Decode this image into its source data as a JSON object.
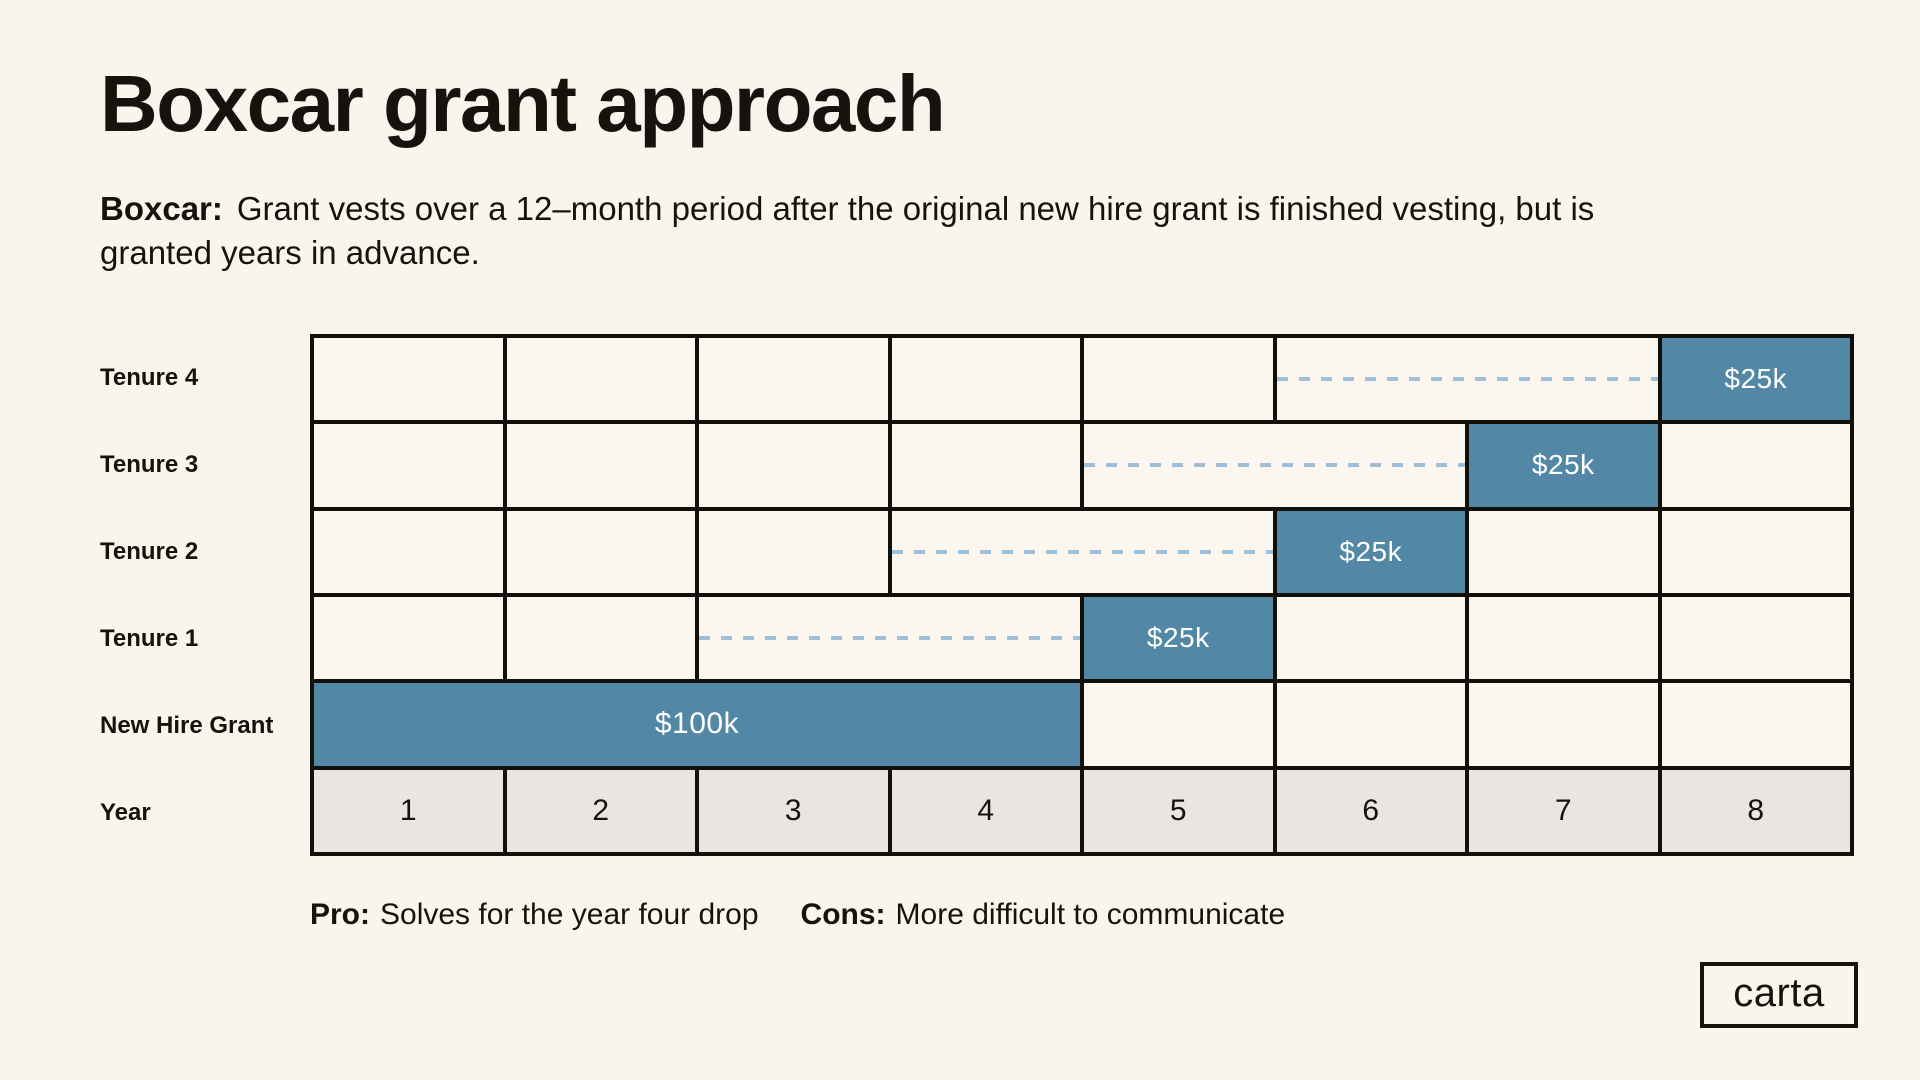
{
  "title": "Boxcar grant approach",
  "subtitle": {
    "lead": "Boxcar:",
    "text": "Grant vests over a 12–month period after the original new hire grant is finished vesting, but is granted years in advance."
  },
  "footnote": {
    "pro_label": "Pro:",
    "pro_text": "Solves for the year four drop",
    "cons_label": "Cons:",
    "cons_text": "More difficult to communicate"
  },
  "logo_text": "carta",
  "colors": {
    "background": "#faf5ec",
    "grant_bar_blue": "#5287a6",
    "dashed_connector_blue": "#9fbfd8",
    "year_row_gray": "#e9e5e0",
    "ink_black": "#16130e"
  },
  "chart": {
    "row_labels": [
      "Tenure 4",
      "Tenure 3",
      "Tenure 2",
      "Tenure 1",
      "New Hire Grant",
      "Year"
    ],
    "rows": [
      {
        "label": "Tenure 4",
        "cells": [
          {
            "t": "empty"
          },
          {
            "t": "empty"
          },
          {
            "t": "empty"
          },
          {
            "t": "empty"
          },
          {
            "t": "empty"
          },
          {
            "t": "dashed",
            "span": 2
          },
          {
            "t": "grant",
            "text": "$25k"
          }
        ]
      },
      {
        "label": "Tenure 3",
        "cells": [
          {
            "t": "empty"
          },
          {
            "t": "empty"
          },
          {
            "t": "empty"
          },
          {
            "t": "empty"
          },
          {
            "t": "dashed",
            "span": 2
          },
          {
            "t": "grant",
            "text": "$25k"
          },
          {
            "t": "empty"
          }
        ]
      },
      {
        "label": "Tenure 2",
        "cells": [
          {
            "t": "empty"
          },
          {
            "t": "empty"
          },
          {
            "t": "empty"
          },
          {
            "t": "dashed",
            "span": 2
          },
          {
            "t": "grant",
            "text": "$25k"
          },
          {
            "t": "empty"
          },
          {
            "t": "empty"
          }
        ]
      },
      {
        "label": "Tenure 1",
        "cells": [
          {
            "t": "empty"
          },
          {
            "t": "empty"
          },
          {
            "t": "dashed",
            "span": 2
          },
          {
            "t": "grant",
            "text": "$25k"
          },
          {
            "t": "empty"
          },
          {
            "t": "empty"
          },
          {
            "t": "empty"
          }
        ]
      },
      {
        "label": "New Hire Grant",
        "cells": [
          {
            "t": "grant",
            "span": 4,
            "text": "$100k",
            "wide": true
          },
          {
            "t": "empty"
          },
          {
            "t": "empty"
          },
          {
            "t": "empty"
          },
          {
            "t": "empty"
          }
        ]
      },
      {
        "label": "Year",
        "cells": [
          {
            "t": "year",
            "text": "1"
          },
          {
            "t": "year",
            "text": "2"
          },
          {
            "t": "year",
            "text": "3"
          },
          {
            "t": "year",
            "text": "4"
          },
          {
            "t": "year",
            "text": "5"
          },
          {
            "t": "year",
            "text": "6"
          },
          {
            "t": "year",
            "text": "7"
          },
          {
            "t": "year",
            "text": "8"
          }
        ]
      }
    ]
  },
  "chart_data": {
    "type": "table",
    "title": "Boxcar grant approach",
    "x_axis": {
      "label": "Year",
      "ticks": [
        "1",
        "2",
        "3",
        "4",
        "5",
        "6",
        "7",
        "8"
      ]
    },
    "rows": [
      {
        "label": "New Hire Grant",
        "grant_value_k_usd": 100,
        "grant_label": "$100k",
        "vest_start_year": 1,
        "vest_end_year": 4
      },
      {
        "label": "Tenure 1",
        "grant_value_k_usd": 25,
        "grant_label": "$25k",
        "vest_start_year": 5,
        "vest_end_year": 5,
        "dashed_lead_in_years": [
          3,
          4
        ]
      },
      {
        "label": "Tenure 2",
        "grant_value_k_usd": 25,
        "grant_label": "$25k",
        "vest_start_year": 6,
        "vest_end_year": 6,
        "dashed_lead_in_years": [
          4,
          5
        ]
      },
      {
        "label": "Tenure 3",
        "grant_value_k_usd": 25,
        "grant_label": "$25k",
        "vest_start_year": 7,
        "vest_end_year": 7,
        "dashed_lead_in_years": [
          5,
          6
        ]
      },
      {
        "label": "Tenure 4",
        "grant_value_k_usd": 25,
        "grant_label": "$25k",
        "vest_start_year": 8,
        "vest_end_year": 8,
        "dashed_lead_in_years": [
          6,
          7
        ]
      }
    ],
    "notes": "Grid of 8 year-columns; dashed blue connectors show the advance-grant period preceding each solid blue vesting box."
  }
}
